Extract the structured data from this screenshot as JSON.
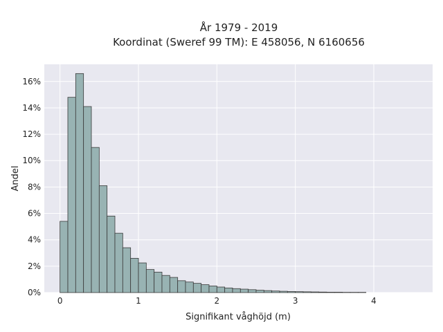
{
  "chart_data": {
    "type": "bar",
    "title": "År 1979 - 2019",
    "subtitle": "Koordinat (Sweref 99 TM): E 458056, N 6160656",
    "xlabel": "Signifikant våghöjd (m)",
    "ylabel": "Andel",
    "xlim": [
      -0.2,
      4.75
    ],
    "ylim": [
      0,
      17.3
    ],
    "x_ticks": [
      0,
      1,
      2,
      3,
      4
    ],
    "x_tick_labels": [
      "0",
      "1",
      "2",
      "3",
      "4"
    ],
    "y_ticks": [
      0,
      2,
      4,
      6,
      8,
      10,
      12,
      14,
      16
    ],
    "y_tick_labels": [
      "0%",
      "2%",
      "4%",
      "6%",
      "8%",
      "10%",
      "12%",
      "14%",
      "16%"
    ],
    "grid": true,
    "legend": "none",
    "bin_width": 0.1,
    "bin_starts": [
      0.0,
      0.1,
      0.2,
      0.3,
      0.4,
      0.5,
      0.6,
      0.7,
      0.8,
      0.9,
      1.0,
      1.1,
      1.2,
      1.3,
      1.4,
      1.5,
      1.6,
      1.7,
      1.8,
      1.9,
      2.0,
      2.1,
      2.2,
      2.3,
      2.4,
      2.5,
      2.6,
      2.7,
      2.8,
      2.9,
      3.0,
      3.1,
      3.2,
      3.3,
      3.4,
      3.5,
      3.6,
      3.7,
      3.8
    ],
    "values": [
      5.4,
      14.8,
      16.6,
      14.1,
      11.0,
      8.1,
      5.8,
      4.5,
      3.4,
      2.6,
      2.25,
      1.75,
      1.55,
      1.3,
      1.15,
      0.9,
      0.8,
      0.7,
      0.6,
      0.5,
      0.42,
      0.35,
      0.3,
      0.26,
      0.22,
      0.18,
      0.15,
      0.12,
      0.1,
      0.08,
      0.07,
      0.06,
      0.05,
      0.04,
      0.03,
      0.03,
      0.02,
      0.02,
      0.02
    ],
    "bar_color": "#98b3b3",
    "bar_edge_color": "#3a3a3a",
    "plot_background": "#e8e8f0",
    "grid_color": "#ffffff"
  }
}
